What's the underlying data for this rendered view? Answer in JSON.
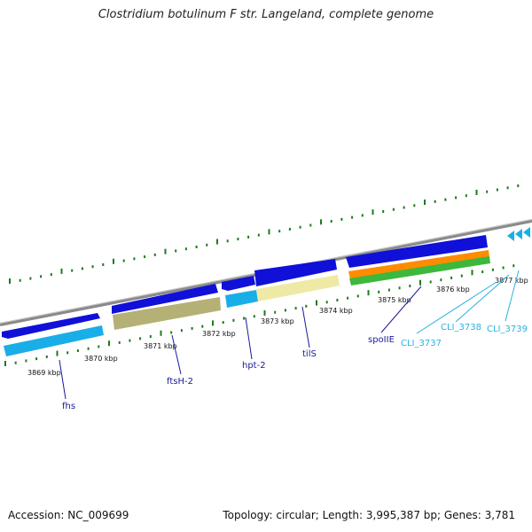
{
  "title": "Clostridium botulinum F str. Langeland, complete genome",
  "footer": {
    "accession": "Accession: NC_009699",
    "summary": "Topology: circular; Length: 3,995,387 bp; Genes: 3,781"
  },
  "colors": {
    "backbone": "#8a8a8a",
    "tick": "#1e7a1e",
    "gene_blue": "#1010d8",
    "gene_cyan": "#1aaee8",
    "gene_olive": "#b5b075",
    "gene_cream": "#efe9a6",
    "gene_orange": "#ff8c00",
    "gene_green": "#3cb83c",
    "label_dark": "#1a1a9a",
    "label_light": "#2ab0e0"
  },
  "scale": {
    "ticks": [
      {
        "label": "3869 kbp"
      },
      {
        "label": "3870 kbp"
      },
      {
        "label": "3871 kbp"
      },
      {
        "label": "3872 kbp"
      },
      {
        "label": "3873 kbp"
      },
      {
        "label": "3874 kbp"
      },
      {
        "label": "3875 kbp"
      },
      {
        "label": "3876 kbp"
      },
      {
        "label": "3877 kbp"
      }
    ]
  },
  "gene_labels": [
    {
      "name": "fhs",
      "color_key": "label_dark"
    },
    {
      "name": "ftsH-2",
      "color_key": "label_dark"
    },
    {
      "name": "hpt-2",
      "color_key": "label_dark"
    },
    {
      "name": "tilS",
      "color_key": "label_dark"
    },
    {
      "name": "spoIIE",
      "color_key": "label_dark"
    },
    {
      "name": "CLI_3737",
      "color_key": "label_light"
    },
    {
      "name": "CLI_3738",
      "color_key": "label_light"
    },
    {
      "name": "CLI_3739",
      "color_key": "label_light"
    }
  ]
}
